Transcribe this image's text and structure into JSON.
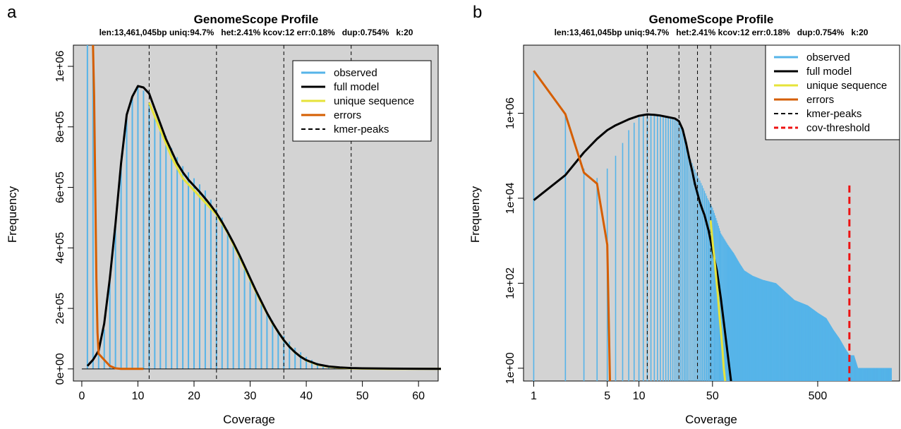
{
  "colors": {
    "observed": "#56B4E9",
    "full_model": "#000000",
    "unique_sequence": "#E6E33A",
    "errors": "#D55E00",
    "kmer_peaks": "#000000",
    "cov_threshold": "#EE1111",
    "plot_background": "#D3D3D3"
  },
  "chart_data": [
    {
      "panel_label": "a",
      "type": "line",
      "title": "GenomeScope Profile",
      "subtitle": "len:13,461,045bp uniq:94.7%   het:2.41% kcov:12 err:0.18%   dup:0.754%   k:20",
      "xlabel": "Coverage",
      "ylabel": "Frequency",
      "log_x": false,
      "log_y": false,
      "xlim": [
        -1.5,
        63.5
      ],
      "ylim": [
        -40000,
        1070000
      ],
      "x_ticks": [
        0,
        10,
        20,
        30,
        40,
        50,
        60
      ],
      "x_tick_labels": [
        "0",
        "10",
        "20",
        "30",
        "40",
        "50",
        "60"
      ],
      "y_ticks": [
        0,
        200000,
        400000,
        600000,
        800000,
        1000000
      ],
      "y_tick_labels": [
        "0e+00",
        "2e+05",
        "4e+05",
        "6e+05",
        "8e+05",
        "1e+06"
      ],
      "legend": {
        "position": "top-right",
        "entries": [
          "observed",
          "full model",
          "unique sequence",
          "errors",
          "kmer-peaks"
        ]
      },
      "kmer_peaks": [
        12,
        24,
        36,
        48
      ],
      "observed": {
        "x": [
          1,
          2,
          3,
          4,
          5,
          6,
          7,
          8,
          9,
          10,
          11,
          12,
          13,
          14,
          15,
          16,
          17,
          18,
          19,
          20,
          21,
          22,
          23,
          24,
          25,
          26,
          27,
          28,
          29,
          30,
          31,
          32,
          33,
          34,
          35,
          36,
          37,
          38,
          39,
          40,
          41,
          42,
          43,
          44,
          45,
          46,
          47,
          48,
          49,
          50
        ],
        "y": [
          1100000,
          1100000,
          50000,
          130000,
          290000,
          480000,
          690000,
          830000,
          900000,
          930000,
          920000,
          880000,
          840000,
          800000,
          770000,
          730000,
          700000,
          670000,
          650000,
          630000,
          610000,
          590000,
          560000,
          530000,
          500000,
          460000,
          420000,
          380000,
          340000,
          300000,
          260000,
          220000,
          190000,
          160000,
          130000,
          110000,
          90000,
          70000,
          55000,
          40000,
          30000,
          20000,
          15000,
          11000,
          8000,
          6000,
          4000,
          3000,
          2000,
          1000
        ]
      },
      "full_model": {
        "x": [
          1,
          2,
          3,
          4,
          5,
          6,
          7,
          8,
          9,
          10,
          11,
          12,
          13,
          14,
          15,
          16,
          17,
          18,
          19,
          20,
          21,
          22,
          23,
          24,
          25,
          26,
          27,
          28,
          29,
          30,
          31,
          32,
          33,
          34,
          35,
          36,
          37,
          38,
          39,
          40,
          42,
          44,
          46,
          48,
          50,
          55,
          60,
          64
        ],
        "y": [
          10000,
          30000,
          60000,
          150000,
          300000,
          480000,
          680000,
          840000,
          900000,
          935000,
          930000,
          910000,
          860000,
          810000,
          760000,
          720000,
          680000,
          650000,
          625000,
          605000,
          585000,
          563000,
          540000,
          515000,
          485000,
          452000,
          417000,
          380000,
          340000,
          300000,
          260000,
          222000,
          185000,
          152000,
          122000,
          95000,
          73000,
          55000,
          40000,
          29000,
          15000,
          8000,
          5000,
          3000,
          2000,
          1000,
          500,
          200
        ]
      },
      "unique_sequence": {
        "x": [
          12,
          14,
          16,
          18,
          20,
          22,
          24,
          26,
          28,
          30,
          32,
          34,
          36,
          38,
          40,
          42,
          44,
          46,
          48,
          50,
          55,
          60,
          64
        ],
        "y": [
          880000,
          790000,
          700000,
          630000,
          590000,
          550000,
          510000,
          450000,
          375000,
          295000,
          218000,
          150000,
          94000,
          54000,
          28000,
          14000,
          7000,
          4000,
          2000,
          1000,
          400,
          200,
          100
        ]
      },
      "errors": {
        "x": [
          2.0,
          2.2,
          2.4,
          2.6,
          2.8,
          3.0,
          4.0,
          5.0,
          6.0,
          7.0,
          8.0,
          9.0,
          10.0,
          11.0
        ],
        "y": [
          1100000,
          900000,
          600000,
          300000,
          120000,
          50000,
          30000,
          10000,
          2000,
          0,
          0,
          0,
          0,
          0
        ]
      }
    },
    {
      "panel_label": "b",
      "type": "line",
      "title": "GenomeScope Profile",
      "subtitle": "len:13,461,045bp uniq:94.7%   het:2.41% kcov:12 err:0.18%   dup:0.754%   k:20",
      "xlabel": "Coverage",
      "ylabel": "Frequency",
      "log_x": true,
      "log_y": true,
      "xlim": [
        0.8,
        3000
      ],
      "ylim": [
        0.5,
        40000000
      ],
      "x_ticks": [
        1,
        5,
        10,
        50,
        500
      ],
      "x_tick_labels": [
        "1",
        "5",
        "10",
        "50",
        "500"
      ],
      "y_ticks": [
        1,
        100,
        10000,
        1000000
      ],
      "y_tick_labels": [
        "1e+00",
        "1e+02",
        "1e+04",
        "1e+06"
      ],
      "legend": {
        "position": "top-right",
        "entries": [
          "observed",
          "full model",
          "unique sequence",
          "errors",
          "kmer-peaks",
          "cov-threshold"
        ]
      },
      "kmer_peaks": [
        12,
        24,
        36,
        48
      ],
      "cov_threshold": 1000,
      "observed_envelope": {
        "x": [
          1,
          2,
          3,
          4,
          5,
          6,
          7,
          8,
          9,
          10,
          12,
          14,
          16,
          18,
          20,
          22,
          24,
          26,
          28,
          30,
          35,
          40,
          45,
          50,
          55,
          60,
          70,
          80,
          90,
          100,
          120,
          150,
          200,
          250,
          300,
          400,
          500,
          600,
          700,
          800,
          900,
          1000,
          1100,
          1200,
          1400,
          1600,
          1800,
          2000,
          2200,
          2500
        ],
        "y": [
          10000000,
          1000000,
          50000,
          30000,
          50000,
          100000,
          200000,
          400000,
          600000,
          800000,
          950000,
          900000,
          850000,
          800000,
          750000,
          700000,
          600000,
          400000,
          200000,
          100000,
          40000,
          20000,
          10000,
          6000,
          3000,
          1500,
          800,
          500,
          300,
          200,
          150,
          120,
          100,
          60,
          40,
          30,
          20,
          15,
          8,
          5,
          3,
          2,
          2,
          1,
          1,
          1,
          1,
          1,
          1,
          1
        ]
      },
      "full_model": {
        "x": [
          1,
          2,
          3,
          4,
          5,
          6,
          8,
          10,
          12,
          14,
          16,
          18,
          20,
          22,
          24,
          26,
          28,
          30,
          32,
          34,
          36,
          38,
          40,
          42,
          44,
          46,
          48,
          50,
          55,
          60,
          65,
          70,
          75
        ],
        "y": [
          9000,
          35000,
          120000,
          250000,
          400000,
          520000,
          720000,
          870000,
          940000,
          920000,
          880000,
          830000,
          790000,
          750000,
          650000,
          420000,
          200000,
          90000,
          45000,
          22000,
          13000,
          8000,
          5500,
          4000,
          2600,
          1700,
          1000,
          600,
          200,
          45,
          9,
          2,
          0.5
        ]
      },
      "unique_sequence": {
        "x": [
          48,
          50,
          52,
          54,
          56,
          58,
          60,
          62,
          64,
          66
        ],
        "y": [
          3000,
          1000,
          400,
          150,
          60,
          20,
          8,
          3,
          1,
          0.5
        ]
      },
      "errors": {
        "x": [
          1,
          2,
          3,
          4,
          5,
          5.3
        ],
        "y": [
          10000000,
          950000,
          40000,
          22000,
          800,
          0.5
        ]
      }
    }
  ],
  "panel_labels": [
    "a",
    "b"
  ]
}
